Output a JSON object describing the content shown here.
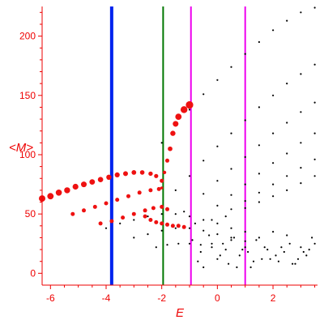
{
  "chart_data": {
    "type": "scatter",
    "title": "",
    "xlabel": "E",
    "ylabel": "<M>",
    "xlim": [
      -6.3,
      3.6
    ],
    "ylim": [
      -10,
      225
    ],
    "xticks": [
      -6,
      -4,
      -2,
      0,
      2
    ],
    "yticks": [
      0,
      50,
      100,
      150,
      200
    ],
    "grid": false,
    "legend": "none",
    "colors": {
      "axes": "#ee0000",
      "state_black": "#000000",
      "state_red": "#ee1111",
      "line_blue": "#0022ee",
      "line_green": "#007700",
      "line_magenta": "#ee00ee"
    },
    "vertical_lines": [
      {
        "x": -3.8,
        "color": "#0022ee"
      },
      {
        "x": -1.95,
        "color": "#007700"
      },
      {
        "x": -0.95,
        "color": "#ee00ee"
      },
      {
        "x": 1.0,
        "color": "#ee00ee"
      }
    ],
    "series": [
      {
        "color": "#000000",
        "x": [
          -2.0,
          -1.5,
          -1.0,
          -0.5,
          0.0,
          0.5,
          1.0,
          1.5,
          2.0,
          2.5,
          3.0,
          3.5
        ],
        "y": [
          110,
          125,
          138,
          151,
          163,
          174,
          185,
          195,
          205,
          213,
          220,
          224
        ]
      },
      {
        "color": "#000000",
        "x": [
          -1.5,
          -1.0,
          -0.5,
          0.0,
          0.5,
          1.0,
          1.5,
          2.0,
          2.5,
          3.0,
          3.5
        ],
        "y": [
          70,
          82,
          95,
          107,
          118,
          129,
          140,
          150,
          160,
          168,
          176
        ]
      },
      {
        "color": "#000000",
        "x": [
          -1.2,
          -0.5,
          0.0,
          0.5,
          1.0,
          1.5,
          2.0,
          2.5,
          3.0,
          3.5
        ],
        "y": [
          52,
          67,
          78,
          88,
          98,
          108,
          118,
          127,
          136,
          144
        ]
      },
      {
        "color": "#000000",
        "x": [
          -0.8,
          0.0,
          0.5,
          1.0,
          1.5,
          2.0,
          2.5,
          3.0,
          3.5
        ],
        "y": [
          42,
          57,
          66,
          75,
          84,
          93,
          101,
          110,
          118
        ]
      },
      {
        "color": "#000000",
        "x": [
          -0.2,
          0.5,
          1.0,
          1.5,
          2.0,
          2.5,
          3.0,
          3.5
        ],
        "y": [
          45,
          54,
          61,
          68,
          75,
          82,
          89,
          96
        ]
      },
      {
        "color": "#000000",
        "x": [
          0.3,
          1.0,
          1.5,
          2.0,
          2.5,
          3.0,
          3.5
        ],
        "y": [
          48,
          55,
          60,
          65,
          70,
          76,
          82
        ]
      },
      {
        "color": "#000000",
        "x": [
          -4.0,
          -3.5,
          -3.0,
          -2.5,
          -2.0,
          -1.5,
          -1.0,
          -0.5,
          0.0,
          0.5,
          1.0
        ],
        "y": [
          38,
          42,
          45,
          48,
          50,
          50,
          48,
          45,
          42,
          38,
          35
        ]
      },
      {
        "color": "#000000",
        "x": [
          -3.0,
          -2.5,
          -2.0,
          -1.5,
          -1.0,
          -0.5,
          0.0,
          0.5,
          1.0
        ],
        "y": [
          30,
          33,
          36,
          38,
          38,
          36,
          33,
          30,
          27
        ]
      },
      {
        "color": "#000000",
        "x": [
          -2.2,
          -1.8,
          -1.4,
          -1.0,
          -0.6,
          -0.2
        ],
        "y": [
          22,
          24,
          25,
          25,
          24,
          22
        ]
      },
      {
        "color": "#000000",
        "x": [
          -0.9,
          -0.6,
          -0.3,
          0.0,
          0.2,
          0.4,
          0.6,
          0.8,
          1.0,
          1.2,
          1.4,
          1.6,
          1.8,
          2.0,
          2.2,
          2.4,
          2.6,
          2.8,
          3.0,
          3.2,
          3.4,
          -0.7,
          -0.2,
          0.3,
          0.7,
          1.1,
          1.5,
          1.9,
          2.3,
          2.7,
          3.1,
          3.5,
          -0.5,
          0.1,
          0.5,
          0.9,
          1.3,
          1.7,
          2.1,
          2.5,
          2.9,
          3.3
        ],
        "y": [
          28,
          18,
          32,
          12,
          25,
          8,
          30,
          15,
          22,
          5,
          28,
          12,
          20,
          35,
          10,
          18,
          25,
          8,
          22,
          15,
          30,
          10,
          25,
          20,
          5,
          18,
          30,
          12,
          22,
          8,
          18,
          25,
          5,
          15,
          28,
          20,
          10,
          22,
          15,
          32,
          12,
          20
        ]
      },
      {
        "color": "#ee1111",
        "x": [
          -6.3,
          -6.0,
          -5.7,
          -5.4,
          -5.1,
          -4.8,
          -4.5,
          -4.2,
          -3.9,
          -3.6,
          -3.3,
          -3.0,
          -2.7,
          -2.4,
          -2.2,
          -2.0
        ],
        "y": [
          63,
          65,
          68,
          70,
          73,
          75,
          77,
          79,
          81,
          83,
          84,
          85,
          85,
          84,
          82,
          78
        ]
      },
      {
        "color": "#ee1111",
        "x": [
          -5.2,
          -4.8,
          -4.4,
          -4.0,
          -3.6,
          -3.2,
          -2.8,
          -2.4,
          -2.1
        ],
        "y": [
          50,
          53,
          56,
          59,
          62,
          65,
          68,
          70,
          71
        ]
      },
      {
        "color": "#ee1111",
        "x": [
          -4.2,
          -3.8,
          -3.4,
          -3.0,
          -2.6,
          -2.3,
          -2.0,
          -1.8
        ],
        "y": [
          42,
          44,
          47,
          50,
          53,
          55,
          56,
          54
        ]
      },
      {
        "color": "#ee1111",
        "x": [
          -2.0,
          -1.9,
          -1.8,
          -1.7,
          -1.6,
          -1.5,
          -1.4,
          -1.2,
          -1.0
        ],
        "y": [
          72,
          85,
          95,
          105,
          118,
          126,
          132,
          138,
          142
        ]
      },
      {
        "color": "#ee1111",
        "x": [
          -2.6,
          -2.4,
          -2.2,
          -2.0,
          -1.8,
          -1.6,
          -1.4,
          -1.2
        ],
        "y": [
          48,
          45,
          43,
          42,
          41,
          40,
          40,
          39
        ]
      }
    ]
  }
}
